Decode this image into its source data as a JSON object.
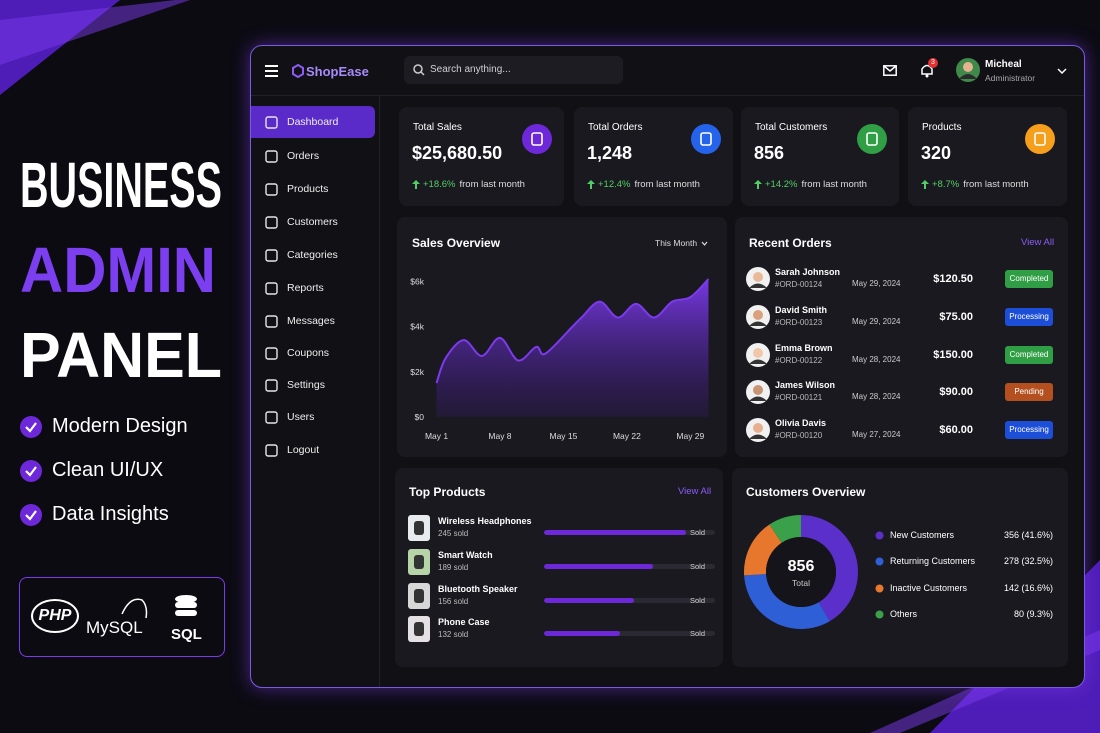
{
  "promo": {
    "title_lines": [
      "BUSINESS",
      "ADMIN",
      "PANEL"
    ],
    "features": [
      "Modern Design",
      "Clean UI/UX",
      "Data Insights"
    ],
    "tech": [
      "PHP",
      "MySQL",
      "SQL"
    ]
  },
  "app": {
    "brand": "ShopEase",
    "search_placeholder": "Search anything...",
    "notifications": 3,
    "user": {
      "name": "Micheal",
      "role": "Administrator"
    },
    "menu": [
      "Dashboard",
      "Orders",
      "Products",
      "Customers",
      "Categories",
      "Reports",
      "Messages",
      "Coupons",
      "Settings",
      "Users",
      "Logout"
    ],
    "active_menu": 0
  },
  "stats": [
    {
      "label": "Total Sales",
      "value": "$25,680.50",
      "change": "+18.6%",
      "note": "from last month",
      "color": "#6d28d9"
    },
    {
      "label": "Total Orders",
      "value": "1,248",
      "change": "+12.4%",
      "note": "from last month",
      "color": "#2563eb"
    },
    {
      "label": "Total Customers",
      "value": "856",
      "change": "+14.2%",
      "note": "from last month",
      "color": "#2f9e44"
    },
    {
      "label": "Products",
      "value": "320",
      "change": "+8.7%",
      "note": "from last month",
      "color": "#f59f1c"
    }
  ],
  "sales_overview": {
    "title": "Sales Overview",
    "period": "This Month",
    "chart": {
      "type": "line",
      "color": "#7c3aed",
      "x": [
        1,
        2,
        4,
        6,
        8,
        10,
        12,
        13,
        16,
        17,
        19,
        21,
        23,
        25,
        27,
        29,
        31
      ],
      "values": [
        1500,
        2600,
        3400,
        2700,
        3500,
        2500,
        3100,
        2800,
        4000,
        4400,
        5100,
        4400,
        5000,
        4400,
        5100,
        5300,
        6100
      ],
      "xlim": [
        0.5,
        31.5
      ],
      "ylim": [
        0,
        6500
      ],
      "xticks": [
        {
          "value": 1,
          "label": "May 1"
        },
        {
          "value": 8,
          "label": "May 8"
        },
        {
          "value": 15,
          "label": "May 15"
        },
        {
          "value": 22,
          "label": "May 22"
        },
        {
          "value": 29,
          "label": "May 29"
        }
      ],
      "yticks": [
        {
          "value": 0,
          "label": "$0"
        },
        {
          "value": 2000,
          "label": "$2k"
        },
        {
          "value": 4000,
          "label": "$4k"
        },
        {
          "value": 6000,
          "label": "$6k"
        }
      ],
      "grid": false
    }
  },
  "recent_orders": {
    "title": "Recent Orders",
    "link": "View All",
    "orders": [
      {
        "name": "Sarah Johnson",
        "id": "#ORD-00124",
        "date": "May 29, 2024",
        "amount": "$120.50",
        "status": "Completed",
        "badge_color": "#2f9e44"
      },
      {
        "name": "David Smith",
        "id": "#ORD-00123",
        "date": "May 29, 2024",
        "amount": "$75.00",
        "status": "Processing",
        "badge_color": "#1d4ed8"
      },
      {
        "name": "Emma Brown",
        "id": "#ORD-00122",
        "date": "May 28, 2024",
        "amount": "$150.00",
        "status": "Completed",
        "badge_color": "#2f9e44"
      },
      {
        "name": "James Wilson",
        "id": "#ORD-00121",
        "date": "May 28, 2024",
        "amount": "$90.00",
        "status": "Pending",
        "badge_color": "#b4501f"
      },
      {
        "name": "Olivia Davis",
        "id": "#ORD-00120",
        "date": "May 27, 2024",
        "amount": "$60.00",
        "status": "Processing",
        "badge_color": "#1d4ed8"
      }
    ]
  },
  "top_products": {
    "title": "Top Products",
    "link": "View All",
    "bar_color": "#6d28d9",
    "products": [
      {
        "name": "Wireless Headphones",
        "sold": 245,
        "sold_label": "245 sold",
        "end_label": "Sold"
      },
      {
        "name": "Smart Watch",
        "sold": 189,
        "sold_label": "189 sold",
        "end_label": "Sold"
      },
      {
        "name": "Bluetooth Speaker",
        "sold": 156,
        "sold_label": "156 sold",
        "end_label": "Sold"
      },
      {
        "name": "Phone Case",
        "sold": 132,
        "sold_label": "132 sold",
        "end_label": "Sold"
      }
    ]
  },
  "customers_overview": {
    "title": "Customers Overview",
    "total": 856,
    "total_label": "Total",
    "segments": [
      {
        "name": "New Customers",
        "value": 356,
        "label": "356 (41.6%)",
        "color": "#5b2fc9"
      },
      {
        "name": "Returning Customers",
        "value": 278,
        "label": "278 (32.5%)",
        "color": "#2f5fd6"
      },
      {
        "name": "Inactive Customers",
        "value": 142,
        "label": "142 (16.6%)",
        "color": "#e8772e"
      },
      {
        "name": "Others",
        "value": 80,
        "label": "80 (9.3%)",
        "color": "#3aa14a"
      }
    ]
  }
}
